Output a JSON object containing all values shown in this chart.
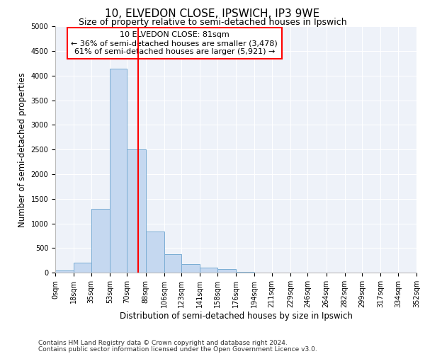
{
  "title": "10, ELVEDON CLOSE, IPSWICH, IP3 9WE",
  "subtitle": "Size of property relative to semi-detached houses in Ipswich",
  "xlabel": "Distribution of semi-detached houses by size in Ipswich",
  "ylabel": "Number of semi-detached properties",
  "footer1": "Contains HM Land Registry data © Crown copyright and database right 2024.",
  "footer2": "Contains public sector information licensed under the Open Government Licence v3.0.",
  "annotation_line1": "10 ELVEDON CLOSE: 81sqm",
  "annotation_line2": "← 36% of semi-detached houses are smaller (3,478)",
  "annotation_line3": "61% of semi-detached houses are larger (5,921) →",
  "bar_edges": [
    0,
    18,
    35,
    53,
    70,
    88,
    106,
    123,
    141,
    158,
    176,
    194,
    211,
    229,
    246,
    264,
    282,
    299,
    317,
    334,
    352
  ],
  "bar_heights": [
    50,
    200,
    1300,
    4150,
    2500,
    840,
    370,
    175,
    105,
    65,
    10,
    5,
    3,
    2,
    1,
    1,
    1,
    1,
    1,
    1
  ],
  "bar_color": "#c5d8f0",
  "bar_edge_color": "#7aadd4",
  "red_line_x": 81,
  "ylim": [
    0,
    5000
  ],
  "yticks": [
    0,
    500,
    1000,
    1500,
    2000,
    2500,
    3000,
    3500,
    4000,
    4500,
    5000
  ],
  "bg_color": "#eef2f9",
  "grid_color": "#ffffff",
  "title_fontsize": 11,
  "subtitle_fontsize": 9,
  "axis_label_fontsize": 8.5,
  "tick_fontsize": 7,
  "annotation_fontsize": 8,
  "footer_fontsize": 6.5
}
